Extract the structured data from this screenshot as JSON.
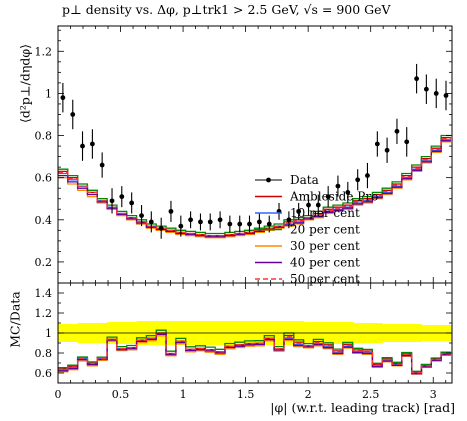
{
  "title": "p⊥ density vs. Δφ, p⊥trk1 > 2.5 GeV, √s = 900 GeV",
  "main_ylabel": "⟨d²p⊥/dηdφ⟩",
  "ratio_ylabel": "MC/Data",
  "xlabel": "|φ| (w.r.t. leading track) [rad]",
  "chart_data": [
    {
      "type": "line",
      "panel": "main",
      "xlim": [
        0,
        3.15
      ],
      "ylim": [
        0.1,
        1.32
      ],
      "x_ticks": [
        "0",
        "0.5",
        "1",
        "1.5",
        "2",
        "2.5",
        "3"
      ],
      "y_ticks": [
        "0.2",
        "0.4",
        "0.6",
        "0.8",
        "1",
        "1.2"
      ],
      "legend": [
        "Data",
        "Ambleside Pro",
        "10 per cent",
        "20 per cent",
        "30 per cent",
        "40 per cent",
        "50 per cent"
      ],
      "legend_position": "right-center",
      "bin_width": 0.0785,
      "data": {
        "name": "Data",
        "x": [
          0.039,
          0.118,
          0.196,
          0.275,
          0.353,
          0.432,
          0.51,
          0.589,
          0.668,
          0.746,
          0.825,
          0.903,
          0.982,
          1.06,
          1.139,
          1.217,
          1.296,
          1.374,
          1.453,
          1.531,
          1.61,
          1.689,
          1.767,
          1.846,
          1.924,
          2.003,
          2.081,
          2.16,
          2.238,
          2.317,
          2.396,
          2.474,
          2.553,
          2.631,
          2.71,
          2.788,
          2.867,
          2.945,
          3.024,
          3.102
        ],
        "y": [
          0.98,
          0.9,
          0.75,
          0.76,
          0.66,
          0.49,
          0.51,
          0.48,
          0.42,
          0.39,
          0.36,
          0.44,
          0.37,
          0.4,
          0.39,
          0.39,
          0.4,
          0.38,
          0.38,
          0.38,
          0.39,
          0.38,
          0.44,
          0.4,
          0.44,
          0.47,
          0.47,
          0.51,
          0.56,
          0.53,
          0.59,
          0.61,
          0.76,
          0.73,
          0.82,
          0.77,
          1.07,
          1.02,
          1.0,
          0.99
        ],
        "err": [
          0.07,
          0.07,
          0.07,
          0.07,
          0.06,
          0.06,
          0.05,
          0.05,
          0.05,
          0.05,
          0.05,
          0.05,
          0.05,
          0.04,
          0.04,
          0.04,
          0.04,
          0.04,
          0.04,
          0.04,
          0.04,
          0.04,
          0.04,
          0.04,
          0.04,
          0.05,
          0.05,
          0.05,
          0.05,
          0.05,
          0.05,
          0.06,
          0.06,
          0.06,
          0.06,
          0.07,
          0.07,
          0.07,
          0.07,
          0.07
        ]
      },
      "series": [
        {
          "name": "Ambleside Pro",
          "color": "#cc0000",
          "dash": "solid",
          "values": [
            0.63,
            0.6,
            0.56,
            0.53,
            0.49,
            0.46,
            0.43,
            0.41,
            0.39,
            0.37,
            0.36,
            0.35,
            0.34,
            0.335,
            0.33,
            0.325,
            0.325,
            0.33,
            0.335,
            0.34,
            0.35,
            0.36,
            0.37,
            0.39,
            0.4,
            0.41,
            0.43,
            0.45,
            0.46,
            0.47,
            0.49,
            0.5,
            0.52,
            0.54,
            0.57,
            0.61,
            0.65,
            0.69,
            0.74,
            0.79
          ]
        },
        {
          "name": "10 per cent",
          "color": "#3366ff",
          "dash": "solid",
          "values": [
            0.62,
            0.59,
            0.56,
            0.52,
            0.49,
            0.46,
            0.43,
            0.4,
            0.38,
            0.37,
            0.355,
            0.345,
            0.335,
            0.33,
            0.325,
            0.32,
            0.32,
            0.325,
            0.33,
            0.335,
            0.345,
            0.355,
            0.365,
            0.38,
            0.39,
            0.4,
            0.42,
            0.44,
            0.45,
            0.46,
            0.48,
            0.49,
            0.51,
            0.53,
            0.56,
            0.6,
            0.64,
            0.68,
            0.73,
            0.78
          ]
        },
        {
          "name": "20 per cent",
          "color": "#008800",
          "dash": "solid",
          "values": [
            0.64,
            0.61,
            0.57,
            0.54,
            0.5,
            0.47,
            0.44,
            0.42,
            0.4,
            0.38,
            0.37,
            0.36,
            0.35,
            0.345,
            0.34,
            0.335,
            0.335,
            0.34,
            0.345,
            0.35,
            0.36,
            0.37,
            0.38,
            0.4,
            0.41,
            0.42,
            0.44,
            0.46,
            0.47,
            0.48,
            0.5,
            0.51,
            0.53,
            0.55,
            0.58,
            0.62,
            0.66,
            0.7,
            0.75,
            0.8
          ]
        },
        {
          "name": "30 per cent",
          "color": "#ff8800",
          "dash": "solid",
          "values": [
            0.6,
            0.57,
            0.54,
            0.51,
            0.48,
            0.45,
            0.42,
            0.4,
            0.38,
            0.36,
            0.35,
            0.34,
            0.33,
            0.325,
            0.32,
            0.315,
            0.315,
            0.32,
            0.325,
            0.33,
            0.34,
            0.35,
            0.36,
            0.37,
            0.38,
            0.4,
            0.41,
            0.43,
            0.44,
            0.45,
            0.47,
            0.48,
            0.5,
            0.52,
            0.55,
            0.59,
            0.63,
            0.67,
            0.72,
            0.77
          ]
        },
        {
          "name": "40 per cent",
          "color": "#660099",
          "dash": "solid",
          "values": [
            0.61,
            0.58,
            0.55,
            0.52,
            0.485,
            0.455,
            0.425,
            0.405,
            0.385,
            0.365,
            0.355,
            0.345,
            0.335,
            0.33,
            0.325,
            0.32,
            0.32,
            0.325,
            0.33,
            0.335,
            0.345,
            0.355,
            0.365,
            0.375,
            0.385,
            0.405,
            0.415,
            0.435,
            0.445,
            0.455,
            0.475,
            0.485,
            0.505,
            0.525,
            0.555,
            0.595,
            0.635,
            0.675,
            0.725,
            0.775
          ]
        },
        {
          "name": "50 per cent",
          "color": "#ff3333",
          "dash": "dashed",
          "values": [
            0.625,
            0.595,
            0.56,
            0.53,
            0.49,
            0.46,
            0.43,
            0.41,
            0.39,
            0.37,
            0.36,
            0.35,
            0.34,
            0.335,
            0.33,
            0.325,
            0.325,
            0.33,
            0.335,
            0.34,
            0.35,
            0.36,
            0.37,
            0.385,
            0.395,
            0.41,
            0.425,
            0.445,
            0.455,
            0.465,
            0.485,
            0.495,
            0.515,
            0.535,
            0.565,
            0.605,
            0.645,
            0.685,
            0.735,
            0.785
          ]
        }
      ]
    },
    {
      "type": "line",
      "panel": "ratio",
      "xlim": [
        0,
        3.15
      ],
      "ylim": [
        0.5,
        1.5
      ],
      "y_ticks": [
        "0.6",
        "0.8",
        "1",
        "1.2",
        "1.4"
      ],
      "band_color": "#ffff00",
      "band_halfwidth": [
        0.09,
        0.09,
        0.1,
        0.1,
        0.1,
        0.11,
        0.11,
        0.11,
        0.12,
        0.12,
        0.12,
        0.12,
        0.12,
        0.12,
        0.12,
        0.12,
        0.12,
        0.12,
        0.12,
        0.12,
        0.12,
        0.12,
        0.12,
        0.12,
        0.12,
        0.11,
        0.11,
        0.11,
        0.11,
        0.11,
        0.1,
        0.1,
        0.1,
        0.09,
        0.09,
        0.09,
        0.09,
        0.08,
        0.08,
        0.08
      ]
    }
  ]
}
